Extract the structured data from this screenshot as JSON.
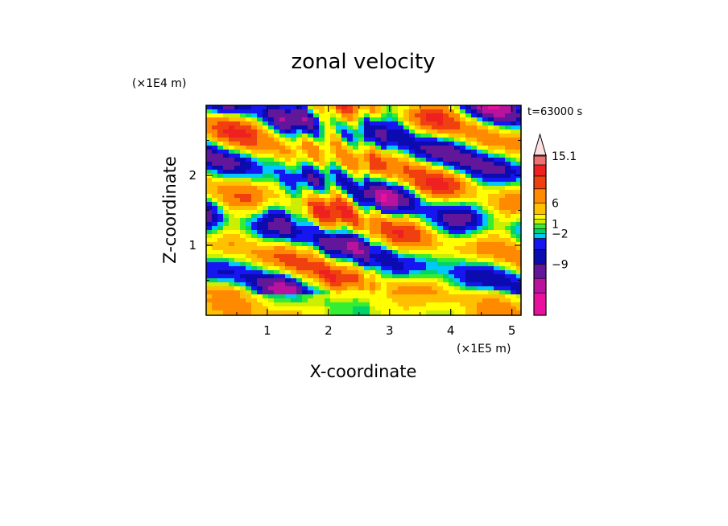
{
  "chart_data": {
    "type": "heatmap",
    "title": "zonal velocity",
    "xlabel": "X-coordinate",
    "ylabel": "Z-coordinate",
    "x_unit": "(×1E5 m)",
    "y_unit": "(×1E4 m)",
    "time_label": "t=63000 s",
    "xlim": [
      0,
      5.15
    ],
    "ylim": [
      0,
      3.0
    ],
    "x_ticks": [
      "1",
      "2",
      "3",
      "4",
      "5"
    ],
    "y_ticks": [
      "1",
      "2"
    ],
    "x_tick_values": [
      1,
      2,
      3,
      4,
      5
    ],
    "y_tick_values": [
      1,
      2
    ],
    "colorbar": {
      "levels": [
        -12,
        -9,
        -6,
        -4,
        -2,
        -1,
        0,
        1,
        2,
        4,
        6,
        9,
        12,
        15.1
      ],
      "labels": [
        "15.1",
        "6",
        "1",
        "−2",
        "−9"
      ],
      "label_values": [
        15.1,
        6,
        1,
        -2,
        -9
      ],
      "colors": [
        "#e8109c",
        "#b8129e",
        "#62169a",
        "#0b0bb0",
        "#1616f0",
        "#00c8ff",
        "#00d36a",
        "#33ee33",
        "#ccee00",
        "#ffff00",
        "#ffc000",
        "#ff8a00",
        "#f04010",
        "#ee2020",
        "#f07070",
        "#f8b8b8"
      ],
      "extend": "max"
    },
    "grid": false,
    "legend": "colorbar right"
  }
}
